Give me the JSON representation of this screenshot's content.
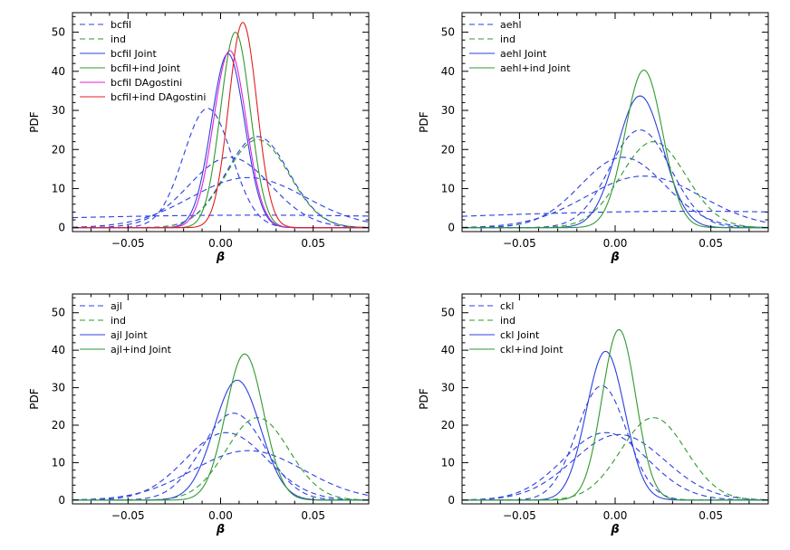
{
  "chart_data": [
    {
      "type": "line",
      "panel": "top-left",
      "xlabel": "β",
      "ylabel": "PDF",
      "xlim": [
        -0.08,
        0.08
      ],
      "ylim": [
        -1,
        55
      ],
      "xticks": [
        -0.05,
        0.0,
        0.05
      ],
      "xtick_labels": [
        "−0.05",
        "0.00",
        "0.05"
      ],
      "yticks": [
        0,
        10,
        20,
        30,
        40,
        50
      ],
      "ytick_labels": [
        "0",
        "10",
        "20",
        "30",
        "40",
        "50"
      ],
      "legend_position": "top-left",
      "legend": [
        {
          "label": "bcfil",
          "color": "#2b3fe0",
          "dash": "dashed"
        },
        {
          "label": "ind",
          "color": "#2f9a2f",
          "dash": "dashed"
        },
        {
          "label": "bcfil Joint",
          "color": "#2b3fe0",
          "dash": "solid"
        },
        {
          "label": "bcfil+ind Joint",
          "color": "#2f9a2f",
          "dash": "solid"
        },
        {
          "label": "bcfil DAgostini",
          "color": "#dd22dd",
          "dash": "solid"
        },
        {
          "label": "bcfil+ind DAgostini",
          "color": "#e02020",
          "dash": "solid"
        }
      ],
      "series": [
        {
          "name": "bcfil",
          "color": "#2b3fe0",
          "dash": "dashed",
          "peak": 30.5,
          "mean": -0.007,
          "sigma": 0.013
        },
        {
          "name": "bcfil",
          "color": "#2b3fe0",
          "dash": "dashed",
          "peak": 23.3,
          "mean": 0.02,
          "sigma": 0.017
        },
        {
          "name": "bcfil",
          "color": "#2b3fe0",
          "dash": "dashed",
          "peak": 18.0,
          "mean": 0.005,
          "sigma": 0.022
        },
        {
          "name": "bcfil",
          "color": "#2b3fe0",
          "dash": "dashed",
          "peak": 12.8,
          "mean": 0.015,
          "sigma": 0.031
        },
        {
          "name": "bcfil",
          "color": "#2b3fe0",
          "dash": "dashed",
          "peak": 3.2,
          "mean": 0.02,
          "sigma": 0.15
        },
        {
          "name": "ind",
          "color": "#2f9a2f",
          "dash": "dashed",
          "peak": 22.5,
          "mean": 0.02,
          "sigma": 0.017
        },
        {
          "name": "bcfil Joint",
          "color": "#2b3fe0",
          "dash": "solid",
          "peak": 44.5,
          "mean": 0.004,
          "sigma": 0.009
        },
        {
          "name": "bcfil+ind Joint",
          "color": "#2f9a2f",
          "dash": "solid",
          "peak": 50.0,
          "mean": 0.008,
          "sigma": 0.008
        },
        {
          "name": "bcfil DAgostini",
          "color": "#dd22dd",
          "dash": "solid",
          "peak": 45.3,
          "mean": 0.005,
          "sigma": 0.0088
        },
        {
          "name": "bcfil+ind DAgostini",
          "color": "#e02020",
          "dash": "solid",
          "peak": 52.5,
          "mean": 0.012,
          "sigma": 0.0076
        }
      ]
    },
    {
      "type": "line",
      "panel": "top-right",
      "xlabel": "β",
      "ylabel": "PDF",
      "xlim": [
        -0.08,
        0.08
      ],
      "ylim": [
        -1,
        55
      ],
      "xticks": [
        -0.05,
        0.0,
        0.05
      ],
      "xtick_labels": [
        "−0.05",
        "0.00",
        "0.05"
      ],
      "yticks": [
        0,
        10,
        20,
        30,
        40,
        50
      ],
      "ytick_labels": [
        "0",
        "10",
        "20",
        "30",
        "40",
        "50"
      ],
      "legend_position": "top-left",
      "legend": [
        {
          "label": "aehl",
          "color": "#2b3fe0",
          "dash": "dashed"
        },
        {
          "label": "ind",
          "color": "#2f9a2f",
          "dash": "dashed"
        },
        {
          "label": "aehl Joint",
          "color": "#2b3fe0",
          "dash": "solid"
        },
        {
          "label": "aehl+ind Joint",
          "color": "#2f9a2f",
          "dash": "solid"
        }
      ],
      "series": [
        {
          "name": "aehl",
          "color": "#2b3fe0",
          "dash": "dashed",
          "peak": 25.0,
          "mean": 0.013,
          "sigma": 0.016
        },
        {
          "name": "aehl",
          "color": "#2b3fe0",
          "dash": "dashed",
          "peak": 18.0,
          "mean": 0.004,
          "sigma": 0.022
        },
        {
          "name": "aehl",
          "color": "#2b3fe0",
          "dash": "dashed",
          "peak": 13.2,
          "mean": 0.015,
          "sigma": 0.03
        },
        {
          "name": "aehl",
          "color": "#2b3fe0",
          "dash": "dashed",
          "peak": 4.2,
          "mean": 0.04,
          "sigma": 0.14
        },
        {
          "name": "ind",
          "color": "#2f9a2f",
          "dash": "dashed",
          "peak": 22.0,
          "mean": 0.02,
          "sigma": 0.017
        },
        {
          "name": "aehl Joint",
          "color": "#2b3fe0",
          "dash": "solid",
          "peak": 33.7,
          "mean": 0.013,
          "sigma": 0.012
        },
        {
          "name": "aehl+ind Joint",
          "color": "#2f9a2f",
          "dash": "solid",
          "peak": 40.3,
          "mean": 0.015,
          "sigma": 0.0098
        }
      ]
    },
    {
      "type": "line",
      "panel": "bottom-left",
      "xlabel": "β",
      "ylabel": "PDF",
      "xlim": [
        -0.08,
        0.08
      ],
      "ylim": [
        -1,
        55
      ],
      "xticks": [
        -0.05,
        0.0,
        0.05
      ],
      "xtick_labels": [
        "−0.05",
        "0.00",
        "0.05"
      ],
      "yticks": [
        0,
        10,
        20,
        30,
        40,
        50
      ],
      "ytick_labels": [
        "0",
        "10",
        "20",
        "30",
        "40",
        "50"
      ],
      "legend_position": "top-left",
      "legend": [
        {
          "label": "ajl",
          "color": "#2b3fe0",
          "dash": "dashed"
        },
        {
          "label": "ind",
          "color": "#2f9a2f",
          "dash": "dashed"
        },
        {
          "label": "ajl Joint",
          "color": "#2b3fe0",
          "dash": "solid"
        },
        {
          "label": "ajl+ind Joint",
          "color": "#2f9a2f",
          "dash": "solid"
        }
      ],
      "series": [
        {
          "name": "ajl",
          "color": "#2b3fe0",
          "dash": "dashed",
          "peak": 23.2,
          "mean": 0.007,
          "sigma": 0.017
        },
        {
          "name": "ajl",
          "color": "#2b3fe0",
          "dash": "dashed",
          "peak": 18.0,
          "mean": 0.003,
          "sigma": 0.022
        },
        {
          "name": "ajl",
          "color": "#2b3fe0",
          "dash": "dashed",
          "peak": 13.2,
          "mean": 0.015,
          "sigma": 0.03
        },
        {
          "name": "ind",
          "color": "#2f9a2f",
          "dash": "dashed",
          "peak": 22.0,
          "mean": 0.02,
          "sigma": 0.017
        },
        {
          "name": "ajl Joint",
          "color": "#2b3fe0",
          "dash": "solid",
          "peak": 32.0,
          "mean": 0.009,
          "sigma": 0.0125
        },
        {
          "name": "ajl+ind Joint",
          "color": "#2f9a2f",
          "dash": "solid",
          "peak": 39.0,
          "mean": 0.013,
          "sigma": 0.0102
        }
      ]
    },
    {
      "type": "line",
      "panel": "bottom-right",
      "xlabel": "β",
      "ylabel": "PDF",
      "xlim": [
        -0.08,
        0.08
      ],
      "ylim": [
        -1,
        55
      ],
      "xticks": [
        -0.05,
        0.0,
        0.05
      ],
      "xtick_labels": [
        "−0.05",
        "0.00",
        "0.05"
      ],
      "yticks": [
        0,
        10,
        20,
        30,
        40,
        50
      ],
      "ytick_labels": [
        "0",
        "10",
        "20",
        "30",
        "40",
        "50"
      ],
      "legend_position": "top-left",
      "legend": [
        {
          "label": "ckl",
          "color": "#2b3fe0",
          "dash": "dashed"
        },
        {
          "label": "ind",
          "color": "#2f9a2f",
          "dash": "dashed"
        },
        {
          "label": "ckl Joint",
          "color": "#2b3fe0",
          "dash": "solid"
        },
        {
          "label": "ckl+ind Joint",
          "color": "#2f9a2f",
          "dash": "solid"
        }
      ],
      "series": [
        {
          "name": "ckl",
          "color": "#2b3fe0",
          "dash": "dashed",
          "peak": 30.5,
          "mean": -0.007,
          "sigma": 0.013
        },
        {
          "name": "ckl",
          "color": "#2b3fe0",
          "dash": "dashed",
          "peak": 18.0,
          "mean": -0.005,
          "sigma": 0.022
        },
        {
          "name": "ckl",
          "color": "#2b3fe0",
          "dash": "dashed",
          "peak": 17.5,
          "mean": 0.002,
          "sigma": 0.024
        },
        {
          "name": "ind",
          "color": "#2f9a2f",
          "dash": "dashed",
          "peak": 22.0,
          "mean": 0.02,
          "sigma": 0.017
        },
        {
          "name": "ckl Joint",
          "color": "#2b3fe0",
          "dash": "solid",
          "peak": 39.7,
          "mean": -0.005,
          "sigma": 0.01
        },
        {
          "name": "ckl+ind Joint",
          "color": "#2f9a2f",
          "dash": "solid",
          "peak": 45.5,
          "mean": 0.002,
          "sigma": 0.0088
        }
      ]
    }
  ]
}
